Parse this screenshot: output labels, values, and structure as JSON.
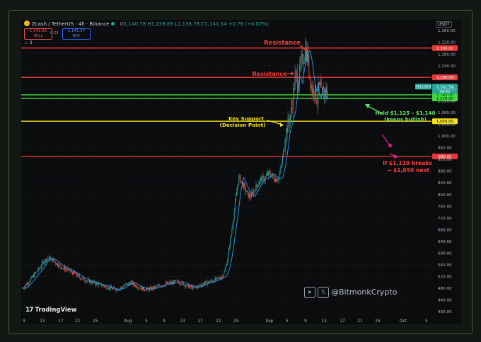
{
  "header": {
    "symbol": "Zcash / TetherUS · 4h · Binance",
    "ohlc_open_label": "O",
    "ohlc_open": "1,140.78",
    "ohlc_high_label": "H",
    "ohlc_high": "1,159.89",
    "ohlc_low_label": "L",
    "ohlc_low": "1,138.78",
    "ohlc_close_label": "C",
    "ohlc_close": "1,141.54",
    "change": "+0.76 (+0.07%)",
    "sell_price": "1,141.56",
    "sell_label": "SELL",
    "spread": "0.01",
    "buy_price": "1,141.57",
    "buy_label": "BUY",
    "layer_count": "3",
    "currency": "USDT"
  },
  "branding": {
    "logo_text": "TradingView",
    "handle": "@BitmonkCrypto"
  },
  "colors": {
    "up": "#26a69a",
    "down": "#ef5350",
    "resistance": "#e53935",
    "support_green": "#3ddc3d",
    "support_yellow": "#f5e11b",
    "annotation_red": "#ff3b3b",
    "annotation_green": "#5fe35f",
    "annotation_magenta": "#e0208a"
  },
  "chart_data": {
    "type": "candlestick",
    "symbol": "ZECUSDT",
    "y_tick_labels": [
      "1,360.00",
      "1,320.00",
      "1,280.00",
      "1,240.00",
      "1,200.00",
      "1,160.00",
      "1,120.00",
      "1,080.00",
      "1,040.00",
      "1,000.00",
      "960.00",
      "920.00",
      "880.00",
      "840.00",
      "800.00",
      "760.00",
      "720.00",
      "680.00",
      "640.00",
      "600.00",
      "560.00",
      "520.00",
      "480.00",
      "440.00",
      "400.00"
    ],
    "y_ticks": [
      1360,
      1320,
      1280,
      1240,
      1200,
      1160,
      1120,
      1080,
      1040,
      1000,
      960,
      920,
      880,
      840,
      800,
      760,
      720,
      680,
      640,
      600,
      560,
      520,
      480,
      440,
      400
    ],
    "ylim": [
      390,
      1380
    ],
    "x_tick_labels": [
      "9",
      "13",
      "17",
      "21",
      "25",
      "Aug",
      "5",
      "9",
      "13",
      "17",
      "21",
      "25",
      "Sep",
      "5",
      "9",
      "13",
      "17",
      "21",
      "25",
      "Oct",
      "5"
    ],
    "current_price": {
      "symbol": "ZECUSDT",
      "value": 1141.54,
      "label": "1,141.54",
      "countdown": "08:43"
    },
    "levels": [
      {
        "value": 1300,
        "label": "1,300.00",
        "color": "#e53935"
      },
      {
        "value": 1200,
        "label": "1,200.00",
        "color": "#e53935"
      },
      {
        "value": 1140,
        "label": "1,140.00",
        "color": "#3ddc3d"
      },
      {
        "value": 1128,
        "label": "1,128.00",
        "color": "#3ddc3d"
      },
      {
        "value": 1050,
        "label": "1,050.00",
        "color": "#f5e11b"
      },
      {
        "value": 930,
        "label": "930.00",
        "color": "#e53935"
      }
    ],
    "annotations": [
      {
        "text": "Resistance",
        "color": "#ff3b3b"
      },
      {
        "text": "Resistance",
        "color": "#ff3b3b"
      },
      {
        "text": "Key Support",
        "color": "#f5e11b"
      },
      {
        "text": "(Decision Point)",
        "color": "#f5e11b"
      },
      {
        "text": "Hold $1,125 – $1,140",
        "color": "#5fe35f"
      },
      {
        "text": "(keeps bullish)",
        "color": "#5fe35f"
      },
      {
        "text": "If $1,110 breaks",
        "color": "#ff3b3b"
      },
      {
        "text": "→ $1,050 next",
        "color": "#ff3b3b"
      }
    ],
    "price_path": [
      [
        0,
        480
      ],
      [
        8,
        500
      ],
      [
        16,
        525
      ],
      [
        24,
        548
      ],
      [
        30,
        572
      ],
      [
        36,
        583
      ],
      [
        42,
        576
      ],
      [
        50,
        560
      ],
      [
        58,
        548
      ],
      [
        66,
        540
      ],
      [
        74,
        528
      ],
      [
        82,
        515
      ],
      [
        90,
        506
      ],
      [
        98,
        500
      ],
      [
        106,
        494
      ],
      [
        114,
        488
      ],
      [
        122,
        482
      ],
      [
        130,
        475
      ],
      [
        138,
        480
      ],
      [
        146,
        492
      ],
      [
        154,
        498
      ],
      [
        162,
        486
      ],
      [
        170,
        478
      ],
      [
        178,
        476
      ],
      [
        186,
        482
      ],
      [
        194,
        488
      ],
      [
        202,
        494
      ],
      [
        210,
        498
      ],
      [
        218,
        502
      ],
      [
        226,
        497
      ],
      [
        232,
        488
      ],
      [
        240,
        482
      ],
      [
        248,
        486
      ],
      [
        256,
        496
      ],
      [
        264,
        502
      ],
      [
        270,
        506
      ],
      [
        276,
        512
      ],
      [
        282,
        520
      ],
      [
        286,
        540
      ],
      [
        290,
        585
      ],
      [
        294,
        650
      ],
      [
        298,
        720
      ],
      [
        302,
        800
      ],
      [
        306,
        860
      ],
      [
        310,
        840
      ],
      [
        314,
        818
      ],
      [
        318,
        800
      ],
      [
        322,
        792
      ],
      [
        326,
        808
      ],
      [
        330,
        826
      ],
      [
        334,
        842
      ],
      [
        338,
        854
      ],
      [
        342,
        852
      ],
      [
        346,
        868
      ],
      [
        350,
        870
      ],
      [
        354,
        857
      ],
      [
        358,
        852
      ],
      [
        362,
        858
      ],
      [
        366,
        900
      ],
      [
        370,
        968
      ],
      [
        372,
        1010
      ],
      [
        376,
        1048
      ],
      [
        380,
        1085
      ],
      [
        382,
        1125
      ],
      [
        384,
        1175
      ],
      [
        386,
        1205
      ],
      [
        388,
        1196
      ],
      [
        390,
        1178
      ],
      [
        392,
        1222
      ],
      [
        396,
        1266
      ],
      [
        400,
        1292
      ],
      [
        402,
        1275
      ],
      [
        404,
        1245
      ],
      [
        406,
        1205
      ],
      [
        408,
        1172
      ],
      [
        410,
        1150
      ],
      [
        412,
        1180
      ],
      [
        414,
        1138
      ],
      [
        416,
        1128
      ],
      [
        418,
        1155
      ],
      [
        420,
        1170
      ],
      [
        422,
        1142
      ],
      [
        424,
        1125
      ],
      [
        426,
        1145
      ],
      [
        428,
        1162
      ],
      [
        430,
        1150
      ],
      [
        432,
        1141
      ]
    ]
  }
}
